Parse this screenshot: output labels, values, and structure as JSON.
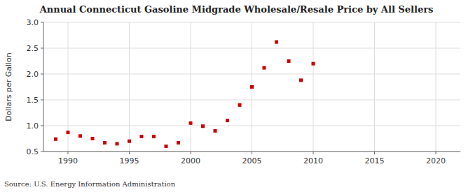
{
  "chart_data": {
    "type": "scatter",
    "title": "Annual Connecticut Gasoline Midgrade Wholesale/Resale Price by All Sellers",
    "ylabel": "Dollars per Gallon",
    "source": "Source: U.S. Energy Information Administration",
    "x": [
      1989,
      1990,
      1991,
      1992,
      1993,
      1994,
      1995,
      1996,
      1997,
      1998,
      1999,
      2000,
      2001,
      2002,
      2003,
      2004,
      2005,
      2006,
      2007,
      2008,
      2009,
      2010
    ],
    "values": [
      0.74,
      0.87,
      0.8,
      0.75,
      0.67,
      0.65,
      0.7,
      0.79,
      0.79,
      0.6,
      0.67,
      1.05,
      0.99,
      0.9,
      1.1,
      1.4,
      1.75,
      2.12,
      2.62,
      2.25,
      1.88,
      2.2
    ],
    "color": "#cc0000",
    "marker": "square",
    "xlim": [
      1988,
      2022
    ],
    "ylim": [
      0.5,
      3.0
    ],
    "xticks": [
      1990,
      1995,
      2000,
      2005,
      2010,
      2015,
      2020
    ],
    "yticks": [
      0.5,
      {
        "value": 1.0,
        "label": "1.0"
      },
      1.5,
      {
        "value": 2.0,
        "label": "2.0"
      },
      2.5,
      {
        "value": 3.0,
        "label": "3.0"
      }
    ],
    "grid": true
  }
}
